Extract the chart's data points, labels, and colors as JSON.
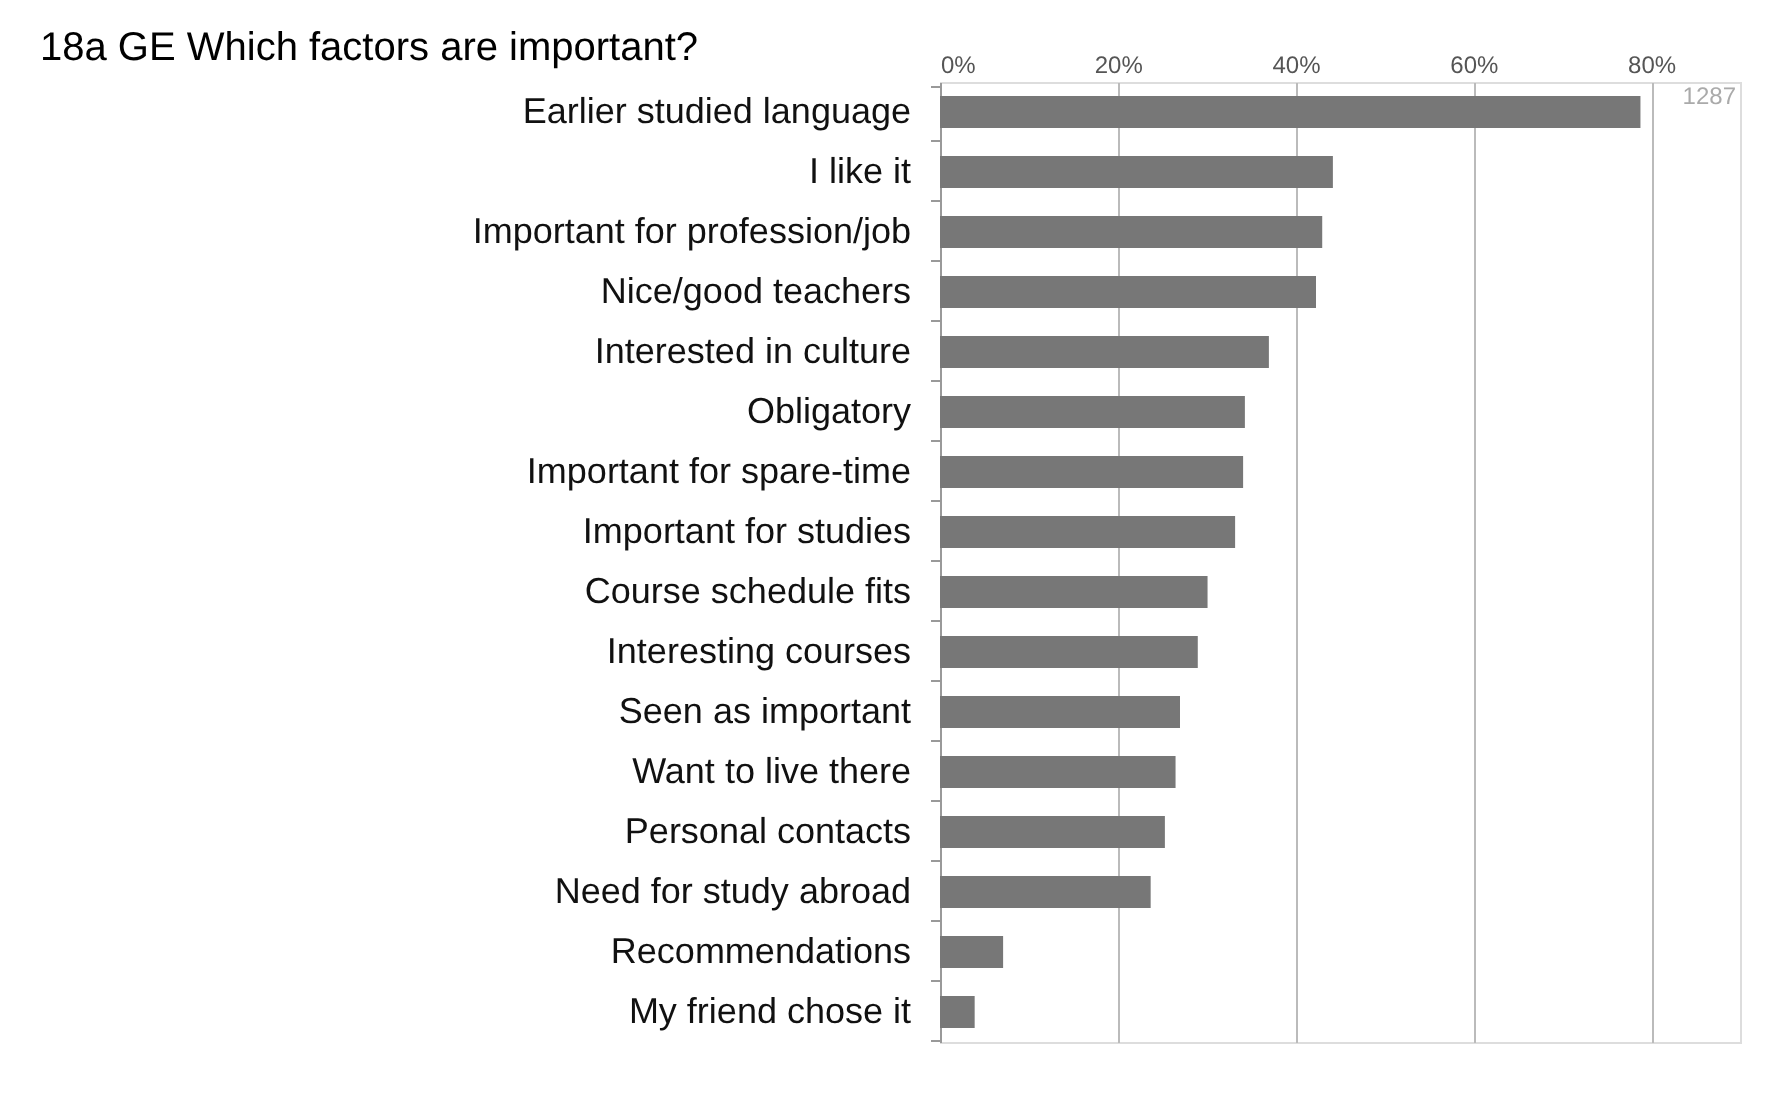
{
  "chart_data": {
    "type": "bar",
    "orientation": "horizontal",
    "title": "18a GE Which factors are important?",
    "categories": [
      "Earlier studied language",
      "I like it",
      "Important for profession/job",
      "Nice/good teachers",
      "Interested in culture",
      "Obligatory",
      "Important for spare-time",
      "Important for studies",
      "Course schedule fits",
      "Interesting courses",
      "Seen as important",
      "Want to live there",
      "Personal contacts",
      "Need for study abroad",
      "Recommendations",
      "My friend chose it"
    ],
    "values": [
      78.8,
      44.2,
      43.0,
      42.3,
      37.0,
      34.3,
      34.1,
      33.2,
      30.1,
      29.0,
      27.0,
      26.5,
      25.3,
      23.7,
      7.1,
      3.9
    ],
    "color": "#777777",
    "xlim": [
      0,
      90
    ],
    "xticks": [
      {
        "value": 0,
        "label": "0%"
      },
      {
        "value": 20,
        "label": "20%"
      },
      {
        "value": 40,
        "label": "40%"
      },
      {
        "value": 60,
        "label": "60%"
      },
      {
        "value": 80,
        "label": "80%"
      }
    ],
    "grid": "x",
    "annotations": [
      "1287"
    ]
  }
}
